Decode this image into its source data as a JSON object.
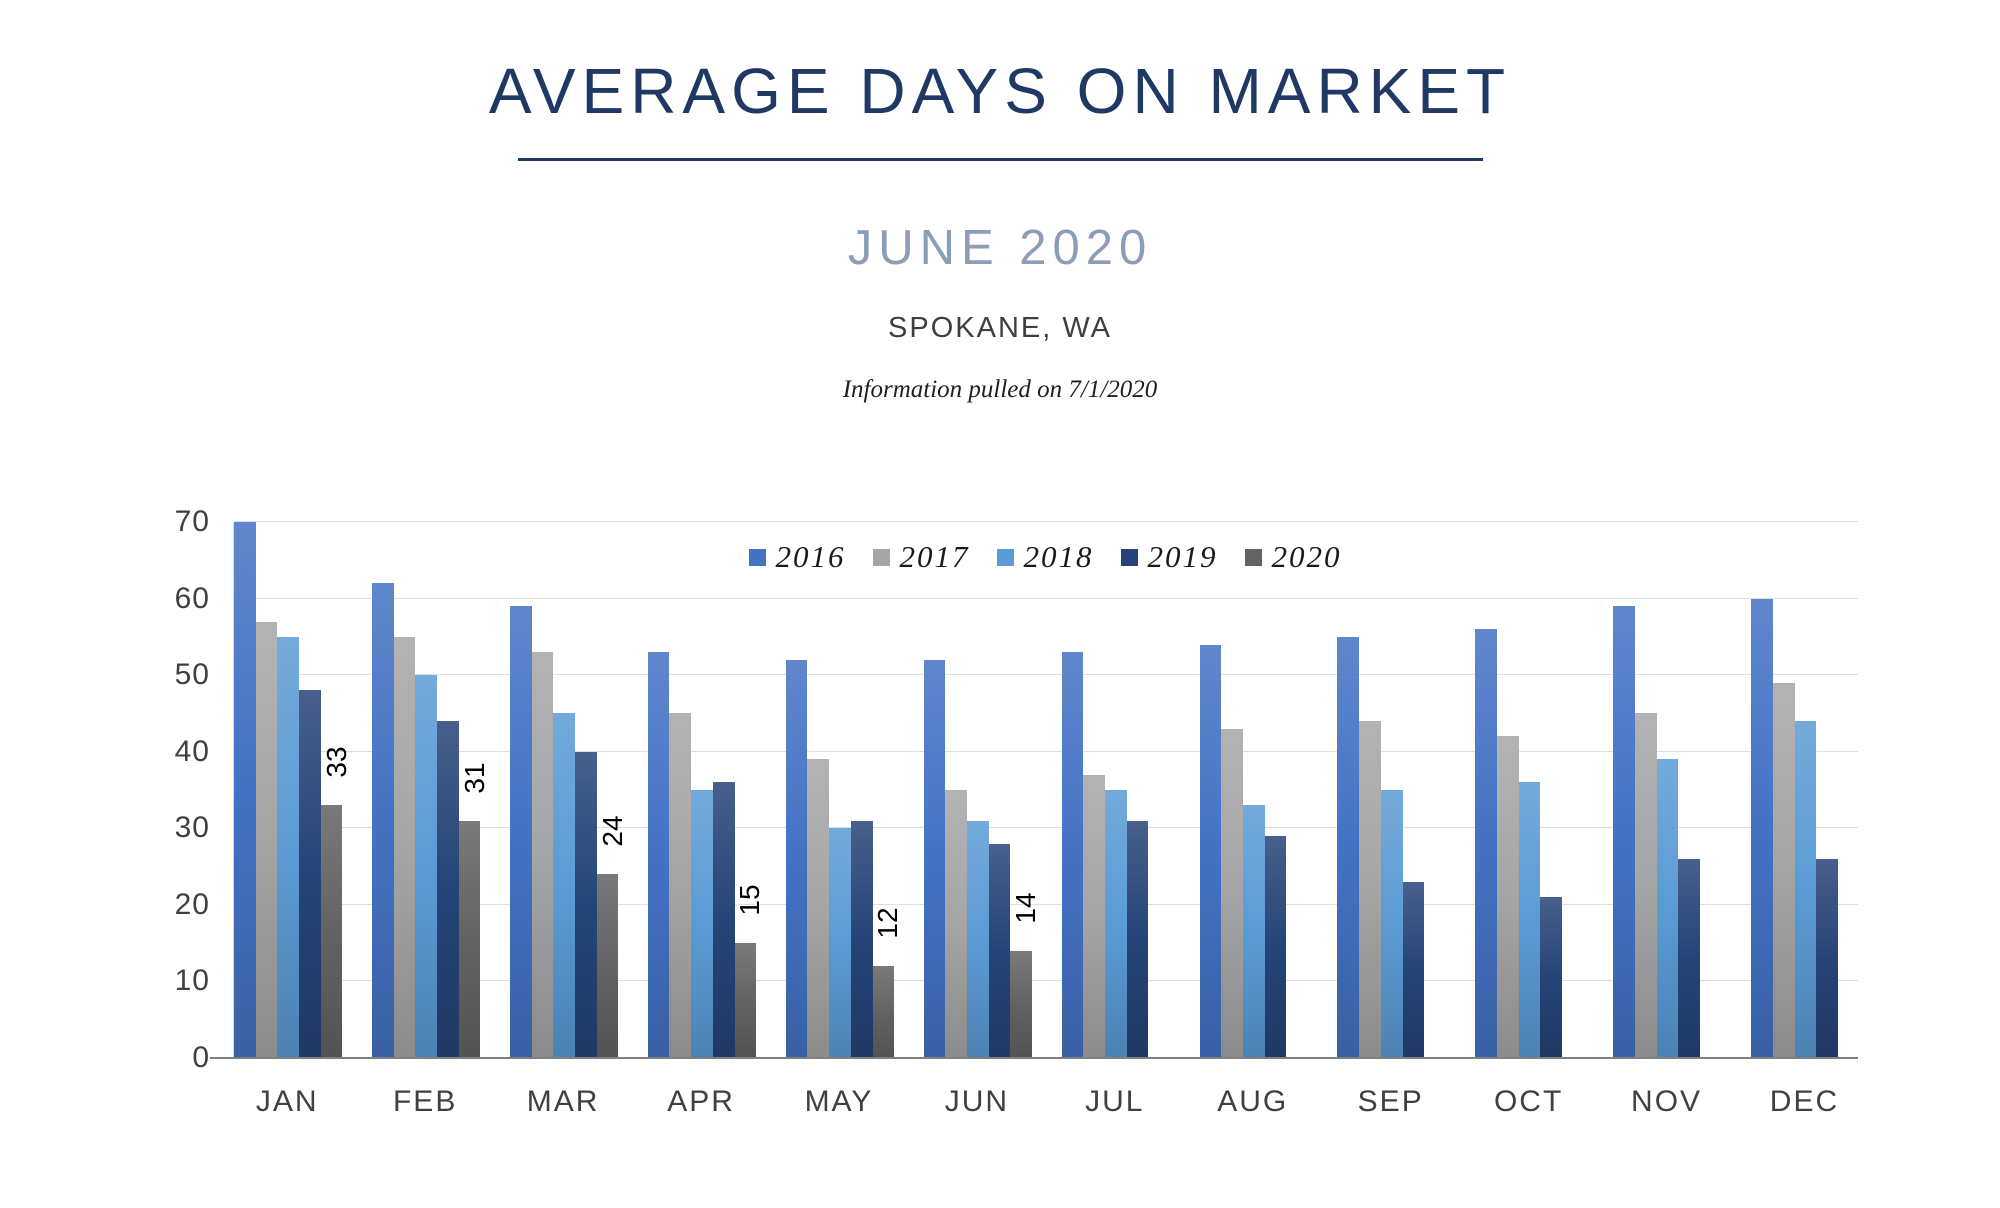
{
  "header": {
    "title": "AVERAGE DAYS ON MARKET",
    "subtitle": "JUNE 2020",
    "location": "SPOKANE, WA",
    "info_note": "Information pulled on 7/1/2020"
  },
  "colors": {
    "title_navy": "#1F3864",
    "subtitle_bluegray": "#8C9DB6",
    "axis_text": "#404040",
    "gridline": "#DEDEDE",
    "axis_line": "#808080"
  },
  "chart_data": {
    "type": "bar",
    "title": "AVERAGE DAYS ON MARKET",
    "xlabel": "",
    "ylabel": "",
    "ylim": [
      0,
      70
    ],
    "yticks": [
      0,
      10,
      20,
      30,
      40,
      50,
      60,
      70
    ],
    "grid": true,
    "legend_position": "top-center",
    "categories": [
      "JAN",
      "FEB",
      "MAR",
      "APR",
      "MAY",
      "JUN",
      "JUL",
      "AUG",
      "SEP",
      "OCT",
      "NOV",
      "DEC"
    ],
    "series": [
      {
        "name": "2016",
        "color": "#4472C4",
        "data_labels": false,
        "values": [
          70,
          62,
          59,
          53,
          52,
          52,
          53,
          54,
          55,
          56,
          59,
          60
        ]
      },
      {
        "name": "2017",
        "color": "#A5A5A5",
        "data_labels": false,
        "values": [
          57,
          55,
          53,
          45,
          39,
          35,
          37,
          43,
          44,
          42,
          45,
          49
        ]
      },
      {
        "name": "2018",
        "color": "#5B9BD5",
        "data_labels": false,
        "values": [
          55,
          50,
          45,
          35,
          30,
          31,
          35,
          33,
          35,
          36,
          39,
          44
        ]
      },
      {
        "name": "2019",
        "color": "#264478",
        "data_labels": false,
        "values": [
          48,
          44,
          40,
          36,
          31,
          28,
          31,
          29,
          23,
          21,
          26,
          26
        ]
      },
      {
        "name": "2020",
        "color": "#636363",
        "data_labels": true,
        "values": [
          33,
          31,
          24,
          15,
          12,
          14,
          null,
          null,
          null,
          null,
          null,
          null
        ]
      }
    ]
  }
}
